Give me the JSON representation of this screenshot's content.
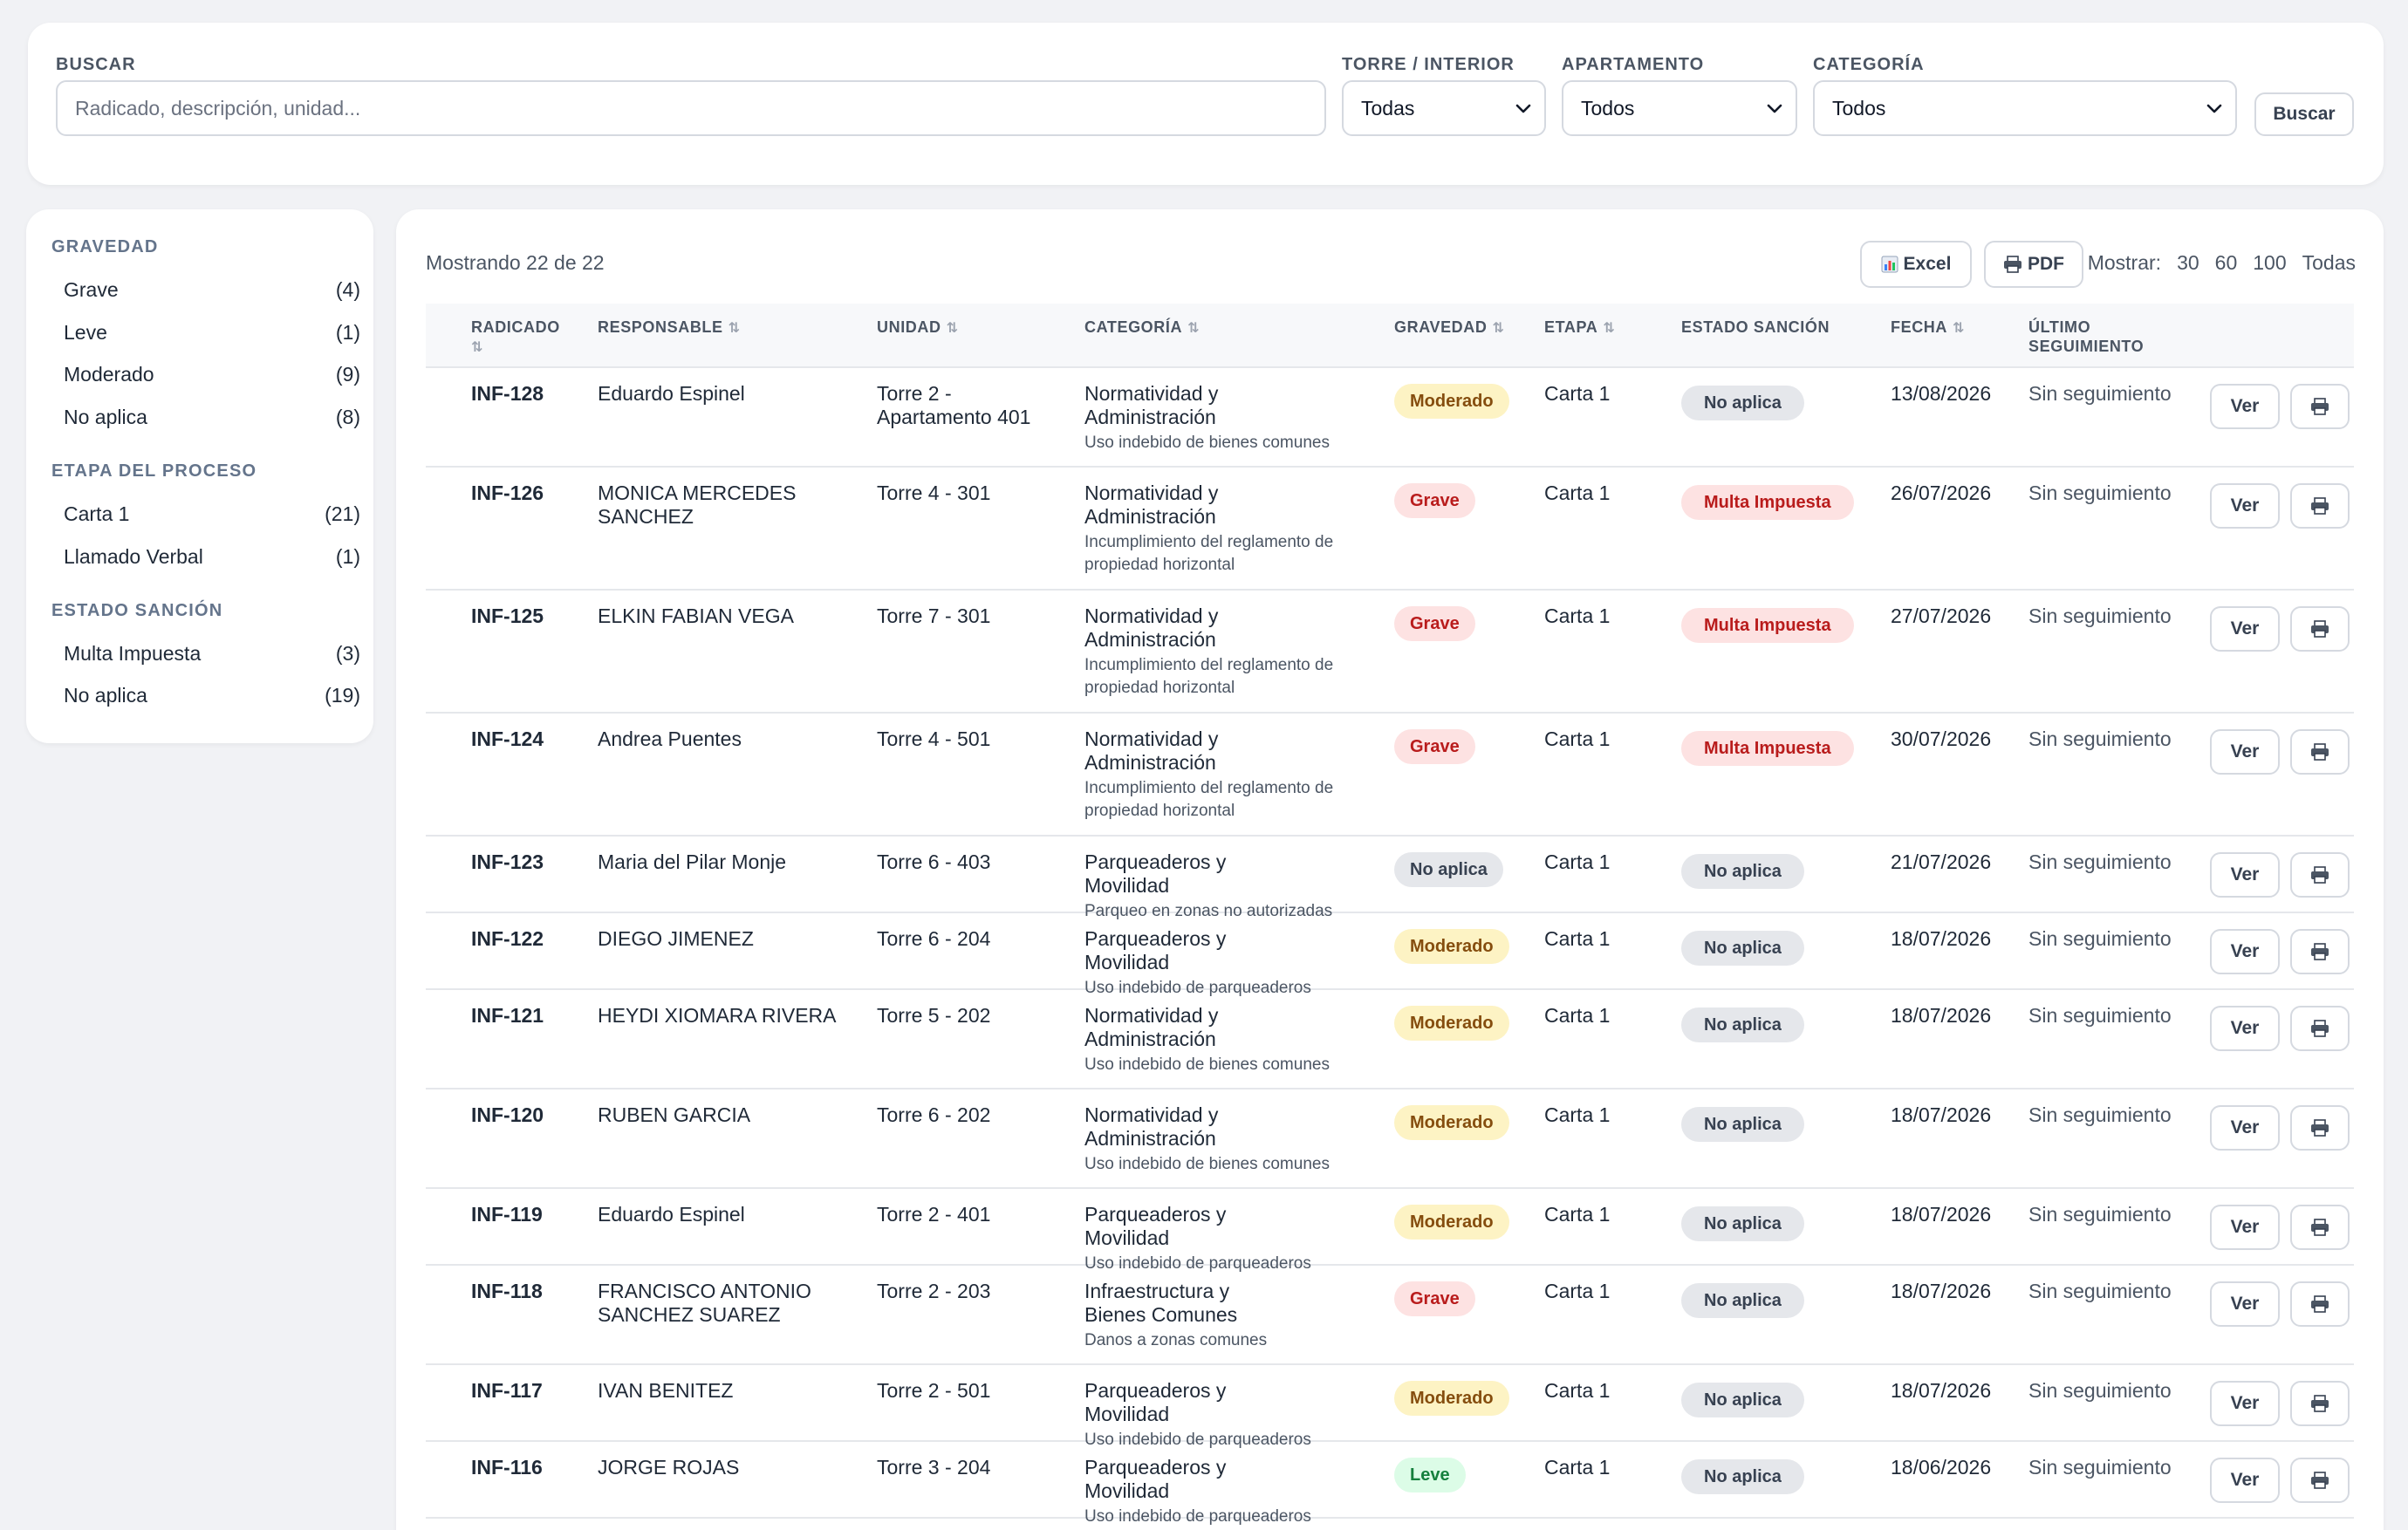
{
  "search": {
    "buscar_label": "Buscar",
    "placeholder": "Radicado, descripción, unidad...",
    "torre_label": "Torre / Interior",
    "torre_value": "Todas",
    "apto_label": "Apartamento",
    "apto_value": "Todos",
    "categoria_label": "Categoría",
    "categoria_value": "Todos",
    "button": "Buscar"
  },
  "sidebar": {
    "gravedad_title": "Gravedad",
    "gravedad": [
      {
        "label": "Grave",
        "count": "(4)"
      },
      {
        "label": "Leve",
        "count": "(1)"
      },
      {
        "label": "Moderado",
        "count": "(9)"
      },
      {
        "label": "No aplica",
        "count": "(8)"
      }
    ],
    "etapa_title": "Etapa del proceso",
    "etapa": [
      {
        "label": "Carta 1",
        "count": "(21)"
      },
      {
        "label": "Llamado Verbal",
        "count": "(1)"
      }
    ],
    "estado_title": "Estado sanción",
    "estado": [
      {
        "label": "Multa Impuesta",
        "count": "(3)"
      },
      {
        "label": "No aplica",
        "count": "(19)"
      }
    ]
  },
  "main": {
    "showing": "Mostrando 22 de 22",
    "excel": "Excel",
    "pdf": "PDF",
    "mostrar_label": "Mostrar:",
    "mostrar_opts": [
      "30",
      "60",
      "100",
      "Todas"
    ],
    "headers": {
      "radicado": "Radicado",
      "responsable": "Responsable",
      "unidad": "Unidad",
      "categoria": "Categoría",
      "gravedad": "Gravedad",
      "etapa": "Etapa",
      "estado": "Estado sanción",
      "fecha": "Fecha",
      "ultimo": "Último seguimiento"
    },
    "ver_label": "Ver",
    "rows": [
      {
        "id": "INF-128",
        "resp": "Eduardo Espinel",
        "unidad": "Torre 2 - Apartamento 401",
        "cat": "Normatividad y Administración",
        "sub": "Uso indebido de bienes comunes",
        "grav": "Moderado",
        "etapa": "Carta 1",
        "estado": "No aplica",
        "fecha": "13/08/2026",
        "ult": "Sin seguimiento"
      },
      {
        "id": "INF-126",
        "resp": "MONICA MERCEDES SANCHEZ",
        "unidad": "Torre 4 - 301",
        "cat": "Normatividad y Administración",
        "sub": "Incumplimiento del reglamento de propiedad horizontal",
        "grav": "Grave",
        "etapa": "Carta 1",
        "estado": "Multa Impuesta",
        "fecha": "26/07/2026",
        "ult": "Sin seguimiento"
      },
      {
        "id": "INF-125",
        "resp": "ELKIN FABIAN VEGA",
        "unidad": "Torre 7 - 301",
        "cat": "Normatividad y Administración",
        "sub": "Incumplimiento del reglamento de propiedad horizontal",
        "grav": "Grave",
        "etapa": "Carta 1",
        "estado": "Multa Impuesta",
        "fecha": "27/07/2026",
        "ult": "Sin seguimiento"
      },
      {
        "id": "INF-124",
        "resp": "Andrea Puentes",
        "unidad": "Torre 4 - 501",
        "cat": "Normatividad y Administración",
        "sub": "Incumplimiento del reglamento de propiedad horizontal",
        "grav": "Grave",
        "etapa": "Carta 1",
        "estado": "Multa Impuesta",
        "fecha": "30/07/2026",
        "ult": "Sin seguimiento"
      },
      {
        "id": "INF-123",
        "resp": "Maria del Pilar Monje",
        "unidad": "Torre 6 - 403",
        "cat": "Parqueaderos y Movilidad",
        "sub": "Parqueo en zonas no autorizadas",
        "grav": "No aplica",
        "etapa": "Carta 1",
        "estado": "No aplica",
        "fecha": "21/07/2026",
        "ult": "Sin seguimiento"
      },
      {
        "id": "INF-122",
        "resp": "DIEGO JIMENEZ",
        "unidad": "Torre 6 - 204",
        "cat": "Parqueaderos y Movilidad",
        "sub": "Uso indebido de parqueaderos",
        "grav": "Moderado",
        "etapa": "Carta 1",
        "estado": "No aplica",
        "fecha": "18/07/2026",
        "ult": "Sin seguimiento"
      },
      {
        "id": "INF-121",
        "resp": "HEYDI XIOMARA RIVERA",
        "unidad": "Torre 5 - 202",
        "cat": "Normatividad y Administración",
        "sub": "Uso indebido de bienes comunes",
        "grav": "Moderado",
        "etapa": "Carta 1",
        "estado": "No aplica",
        "fecha": "18/07/2026",
        "ult": "Sin seguimiento"
      },
      {
        "id": "INF-120",
        "resp": "RUBEN GARCIA",
        "unidad": "Torre 6 - 202",
        "cat": "Normatividad y Administración",
        "sub": "Uso indebido de bienes comunes",
        "grav": "Moderado",
        "etapa": "Carta 1",
        "estado": "No aplica",
        "fecha": "18/07/2026",
        "ult": "Sin seguimiento"
      },
      {
        "id": "INF-119",
        "resp": "Eduardo Espinel",
        "unidad": "Torre 2 - 401",
        "cat": "Parqueaderos y Movilidad",
        "sub": "Uso indebido de parqueaderos",
        "grav": "Moderado",
        "etapa": "Carta 1",
        "estado": "No aplica",
        "fecha": "18/07/2026",
        "ult": "Sin seguimiento"
      },
      {
        "id": "INF-118",
        "resp": "FRANCISCO ANTONIO SANCHEZ SUAREZ",
        "unidad": "Torre 2 - 203",
        "cat": "Infraestructura y Bienes Comunes",
        "sub": "Danos a zonas comunes",
        "grav": "Grave",
        "etapa": "Carta 1",
        "estado": "No aplica",
        "fecha": "18/07/2026",
        "ult": "Sin seguimiento"
      },
      {
        "id": "INF-117",
        "resp": "IVAN BENITEZ",
        "unidad": "Torre 2 - 501",
        "cat": "Parqueaderos y Movilidad",
        "sub": "Uso indebido de parqueaderos",
        "grav": "Moderado",
        "etapa": "Carta 1",
        "estado": "No aplica",
        "fecha": "18/07/2026",
        "ult": "Sin seguimiento"
      },
      {
        "id": "INF-116",
        "resp": "JORGE ROJAS",
        "unidad": "Torre 3 - 204",
        "cat": "Parqueaderos y Movilidad",
        "sub": "Uso indebido de parqueaderos",
        "grav": "Leve",
        "etapa": "Carta 1",
        "estado": "No aplica",
        "fecha": "18/06/2026",
        "ult": "Sin seguimiento"
      }
    ]
  },
  "colors": {
    "moderado_bg": "#fdf3c4",
    "grave_bg": "#fde2e2",
    "leve_bg": "#dcfce7",
    "na_bg": "#e5e7eb"
  }
}
